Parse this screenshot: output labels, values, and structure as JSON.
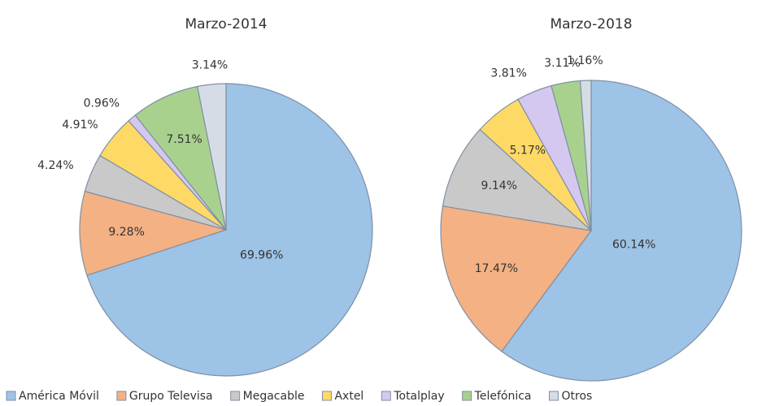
{
  "legend": {
    "categories": [
      "América Móvil",
      "Grupo Televisa",
      "Megacable",
      "Axtel",
      "Totalplay",
      "Telefónica",
      "Otros"
    ],
    "colors": [
      "#9dc3e6",
      "#f4b183",
      "#c9c9c9",
      "#ffd966",
      "#d5c8f0",
      "#a9d18e",
      "#d6dce5"
    ]
  },
  "chart_data": [
    {
      "type": "pie",
      "title": "Marzo-2014",
      "values": [
        69.96,
        9.28,
        4.24,
        4.91,
        0.96,
        7.51,
        3.14
      ],
      "value_labels": [
        "69.96%",
        "9.28%",
        "4.24%",
        "4.91%",
        "0.96%",
        "7.51%",
        "3.14%"
      ]
    },
    {
      "type": "pie",
      "title": "Marzo-2018",
      "values": [
        60.14,
        17.47,
        9.14,
        5.17,
        3.81,
        3.11,
        1.16
      ],
      "value_labels": [
        "60.14%",
        "17.47%",
        "9.14%",
        "5.17%",
        "3.81%",
        "3.11%",
        "1.16%"
      ]
    }
  ]
}
